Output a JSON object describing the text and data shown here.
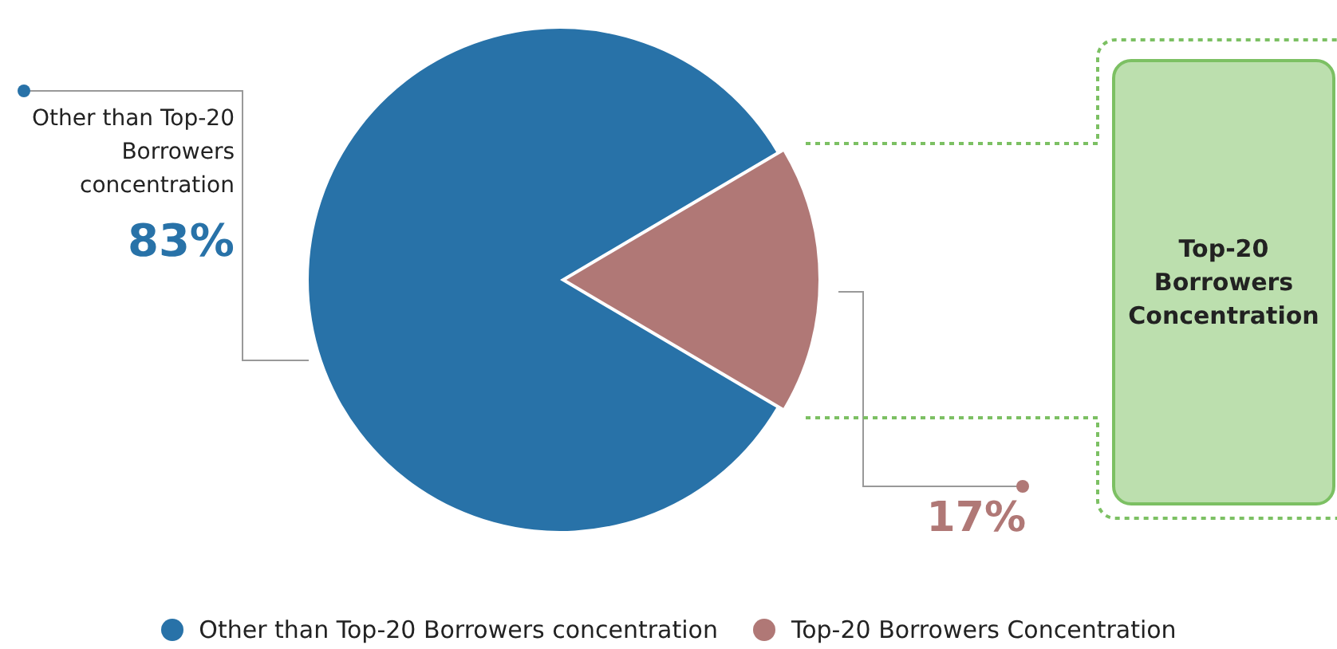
{
  "chart_data": {
    "type": "pie",
    "categories": [
      "Other than Top-20 Borrowers concentration",
      "Top-20 Borrowers Concentration"
    ],
    "values": [
      83,
      17
    ],
    "colors": [
      "#2872a8",
      "#b07876"
    ],
    "value_labels": [
      "83%",
      "17%"
    ],
    "annotations": [
      "Other than Top-20 Borrowers concentration",
      "Top-20 Borrowers Concentration"
    ],
    "legend": "bottom"
  }
}
